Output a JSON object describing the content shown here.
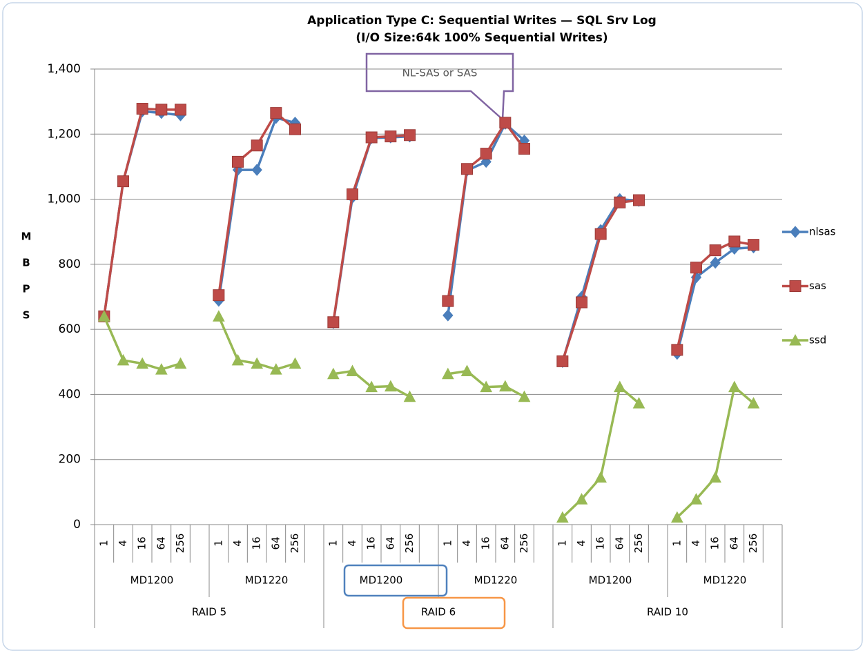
{
  "chart_data": {
    "type": "line",
    "title": "Application Type C: Sequential Writes — SQL Srv Log",
    "subtitle": "(I/O Size:64k  100% Sequential Writes)",
    "y_label": "MBPS",
    "annotation": "NL-SAS or SAS",
    "categories": [
      "1",
      "4",
      "16",
      "64",
      "256",
      null,
      "1",
      "4",
      "16",
      "64",
      "256",
      null,
      "1",
      "4",
      "16",
      "64",
      "256",
      null,
      "1",
      "4",
      "16",
      "64",
      "256",
      null,
      "1",
      "4",
      "16",
      "64",
      "256",
      null,
      "1",
      "4",
      "16",
      "64",
      "256",
      null
    ],
    "group_labels": [
      "MD1200",
      "MD1220",
      "MD1200",
      "MD1220",
      "MD1200",
      "MD1220"
    ],
    "supergroup_labels": [
      "RAID 5",
      "RAID 6",
      "RAID 10"
    ],
    "series": [
      {
        "name": "nlsas",
        "color": "#4a7ebb",
        "marker": "diamond",
        "values": [
          640,
          1055,
          1270,
          1265,
          1258,
          null,
          688,
          1090,
          1090,
          1250,
          1235,
          null,
          620,
          1005,
          1188,
          1190,
          1193,
          null,
          643,
          1088,
          1115,
          1232,
          1180,
          null,
          500,
          700,
          905,
          1000,
          995,
          null,
          525,
          760,
          805,
          848,
          852,
          null
        ]
      },
      {
        "name": "sas",
        "color": "#be4b48",
        "marker": "square",
        "values": [
          640,
          1055,
          1278,
          1275,
          1275,
          null,
          705,
          1115,
          1165,
          1265,
          1215,
          null,
          622,
          1015,
          1190,
          1193,
          1197,
          null,
          687,
          1093,
          1140,
          1235,
          1155,
          null,
          502,
          683,
          893,
          990,
          997,
          null,
          537,
          790,
          843,
          870,
          860,
          null
        ]
      },
      {
        "name": "ssd",
        "color": "#98b954",
        "marker": "triangle",
        "values": [
          640,
          505,
          495,
          477,
          495,
          null,
          640,
          505,
          495,
          477,
          495,
          null,
          463,
          472,
          423,
          425,
          393,
          null,
          463,
          472,
          423,
          425,
          393,
          null,
          22,
          78,
          145,
          423,
          373,
          null,
          22,
          78,
          145,
          423,
          373,
          null
        ]
      }
    ],
    "ylim": [
      0,
      1400
    ],
    "yticks": [
      0,
      200,
      400,
      600,
      800,
      {
        "value": 1000,
        "label": "1,000"
      },
      {
        "value": 1200,
        "label": "1,200"
      },
      {
        "value": 1400,
        "label": "1,400"
      }
    ],
    "grid": true,
    "legend": "right"
  }
}
